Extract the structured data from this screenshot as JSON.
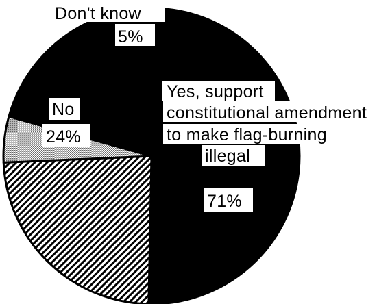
{
  "chart_data": {
    "type": "pie",
    "title": "",
    "slices": [
      {
        "label_lines": [
          "Yes, support",
          "constitutional amendment",
          "to make flag-burning",
          "illegal"
        ],
        "value_label": "71%",
        "value": 71,
        "fill": "solid",
        "color": "#000000"
      },
      {
        "label_lines": [
          "No"
        ],
        "value_label": "24%",
        "value": 24,
        "fill": "diagonal-hatch",
        "color": "#000000"
      },
      {
        "label_lines": [
          "Don't know"
        ],
        "value_label": "5%",
        "value": 5,
        "fill": "dotted",
        "color": "#bdbdbd"
      }
    ],
    "legend": "none"
  }
}
